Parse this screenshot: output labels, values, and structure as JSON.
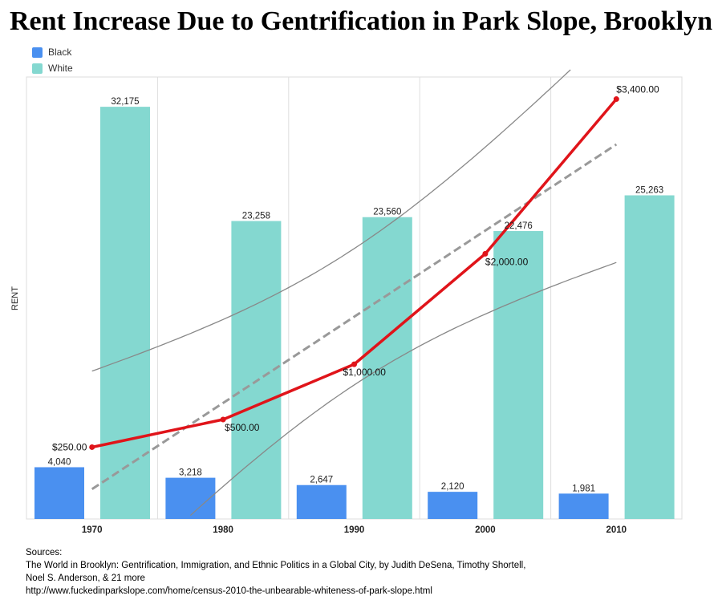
{
  "chart_data": {
    "type": "bar",
    "title": "Rent Increase Due to Gentrification in Park Slope, Brooklyn",
    "ylabel": "RENT",
    "categories": [
      "1970",
      "1980",
      "1990",
      "2000",
      "2010"
    ],
    "series": [
      {
        "name": "Black",
        "type": "bar",
        "color": "#4a90f0",
        "values": [
          4040,
          3218,
          2647,
          2120,
          1981
        ],
        "labels": [
          "4,040",
          "3,218",
          "2,647",
          "2,120",
          "1,981"
        ]
      },
      {
        "name": "White",
        "type": "bar",
        "color": "#84d8d0",
        "values": [
          32175,
          23258,
          23560,
          22476,
          25263
        ],
        "labels": [
          "32,175",
          "23,258",
          "23,560",
          "22,476",
          "25,263"
        ]
      },
      {
        "type": "line",
        "color": "#e0141a",
        "values": [
          250,
          500,
          1000,
          2000,
          3400
        ],
        "labels": [
          "$250.00",
          "$500.00",
          "$1,000.00",
          "$2,000.00",
          "$3,400.00"
        ]
      }
    ],
    "bar_ylim": [
      0,
      34500
    ],
    "rent_ylim": [
      -400,
      3600
    ],
    "trend": {
      "type": "linear-regression",
      "style": "dashed",
      "color": "#999999",
      "confidence_band": true
    },
    "grid": {
      "vertical": true,
      "horizontal": false
    },
    "legend": {
      "position": "top-left",
      "entries": [
        "Black",
        "White"
      ]
    }
  },
  "sources": {
    "heading": "Sources:",
    "lines": [
      "The World in Brooklyn: Gentrification, Immigration, and Ethnic Politics in a Global City, by Judith DeSena, Timothy Shortell,",
      "Noel S. Anderson, & 21 more",
      "http://www.fuckedinparkslope.com/home/census-2010-the-unbearable-whiteness-of-park-slope.html"
    ]
  }
}
